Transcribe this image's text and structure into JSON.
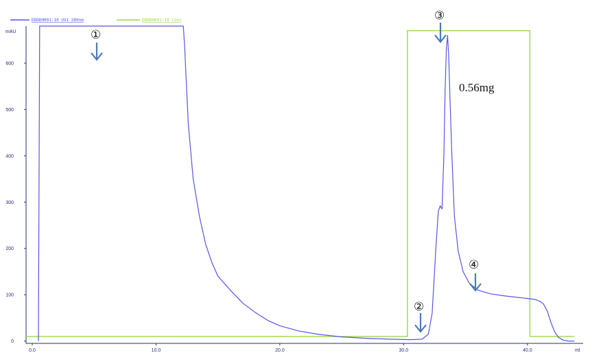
{
  "chart_data": {
    "type": "line",
    "title": "",
    "xlabel": "",
    "ylabel": "",
    "x_unit": "ml",
    "y_unit": "mAU",
    "xlim": [
      -0.5,
      44.5
    ],
    "ylim": [
      -5,
      680
    ],
    "xticks": [
      0.0,
      10.0,
      20.0,
      30.0,
      40.0
    ],
    "xtick_labels": [
      "0.0",
      "10.0",
      "20.0",
      "30.0",
      "40.0"
    ],
    "yticks": [
      0,
      100,
      200,
      300,
      400,
      500,
      600
    ],
    "ytick_labels": [
      "0",
      "100",
      "200",
      "300",
      "400",
      "500",
      "600"
    ],
    "series": [
      {
        "name": "DDDDH001:10_UV1_280nm",
        "color": "#5555e6",
        "x": [
          0.5,
          0.6,
          0.8,
          12.2,
          12.3,
          12.6,
          13.0,
          13.5,
          14.0,
          14.5,
          15.0,
          16.0,
          17.0,
          18.0,
          19.0,
          20.0,
          21.5,
          23.0,
          25.0,
          27.0,
          29.0,
          30.5,
          31.5,
          32.0,
          32.3,
          32.6,
          32.8,
          32.95,
          33.1,
          33.25,
          33.35,
          33.45,
          33.55,
          33.65,
          33.75,
          33.9,
          34.1,
          34.4,
          34.8,
          35.3,
          36.0,
          37.0,
          38.0,
          39.0,
          40.0,
          40.6,
          41.0,
          41.3,
          41.6,
          41.9,
          42.2,
          42.5,
          42.9,
          43.3,
          43.8
        ],
        "y": [
          0,
          680,
          680,
          680,
          640,
          470,
          350,
          270,
          210,
          170,
          140,
          110,
          82,
          62,
          45,
          33,
          22,
          15,
          9,
          6,
          4,
          3,
          4,
          15,
          60,
          200,
          280,
          292,
          285,
          400,
          540,
          630,
          660,
          610,
          520,
          400,
          270,
          195,
          150,
          125,
          110,
          102,
          98,
          95,
          92,
          90,
          86,
          80,
          65,
          40,
          20,
          8,
          2,
          0,
          0
        ]
      },
      {
        "name": "DDDDH001:10_Conc",
        "color": "#99d84c",
        "x": [
          -0.5,
          30.3,
          30.3,
          40.2,
          40.2,
          43.8
        ],
        "y": [
          10,
          10,
          670,
          670,
          10,
          10
        ]
      }
    ],
    "annotations": [
      {
        "label": "①",
        "x": 5.0
      },
      {
        "label": "②",
        "x": 32.3
      },
      {
        "label": "③",
        "x": 33.4
      },
      {
        "label": "④",
        "x": 36.5
      },
      {
        "label": "0.56mg"
      }
    ]
  }
}
